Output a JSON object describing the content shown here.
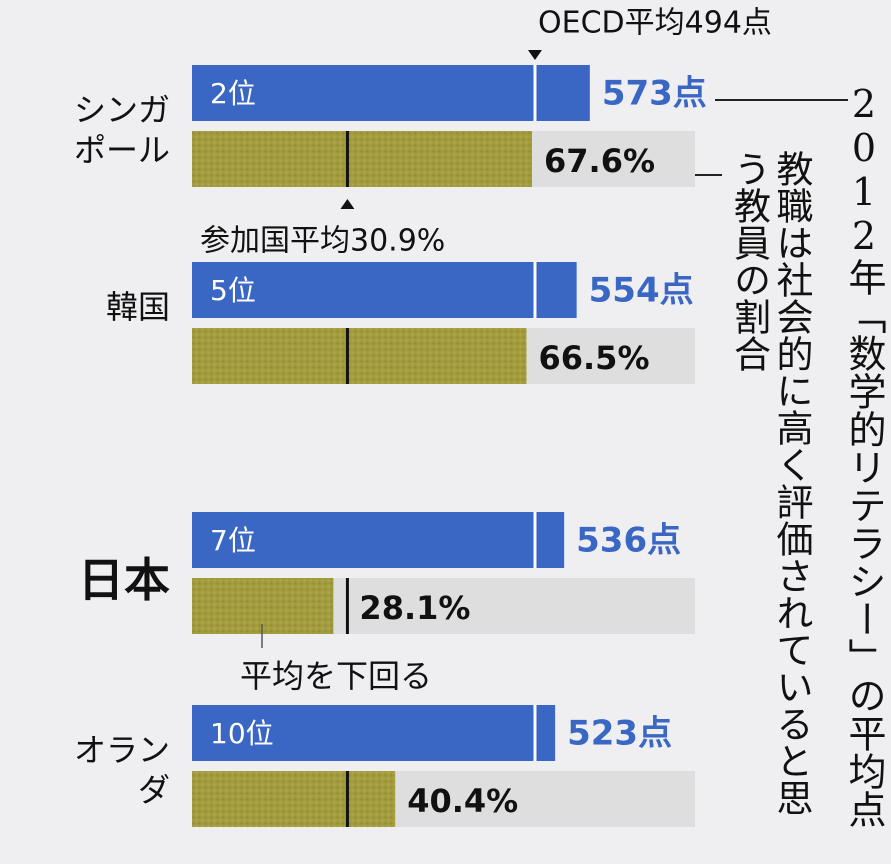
{
  "chart_data": {
    "type": "bar",
    "categories": [
      "シンガポール",
      "韓国",
      "日本",
      "オランダ"
    ],
    "series": [
      {
        "name": "2012年「数学的リテラシー」の平均点",
        "color": "#3a66c4",
        "values": [
          573,
          554,
          536,
          523
        ],
        "value_labels": [
          "573点",
          "554点",
          "536点",
          "523点"
        ],
        "rank_labels": [
          "2位",
          "5位",
          "7位",
          "10位"
        ]
      },
      {
        "name": "教職は社会的に高く評価されていると思う教員の割合",
        "color": "#a39c3e",
        "axis": "y2",
        "values": [
          67.6,
          66.5,
          28.1,
          40.4
        ],
        "value_labels": [
          "67.6%",
          "66.5%",
          "28.1%",
          "40.4%"
        ]
      }
    ],
    "ylim": [
      0,
      700
    ],
    "y2lim": [
      0,
      100
    ],
    "reference_lines": [
      {
        "series": 0,
        "value": 494,
        "label": "OECD平均494点"
      },
      {
        "series": 1,
        "value": 30.9,
        "label": "参加国平均30.9%"
      }
    ],
    "annotations": [
      {
        "category": 2,
        "text": "平均を下回る"
      }
    ]
  }
}
